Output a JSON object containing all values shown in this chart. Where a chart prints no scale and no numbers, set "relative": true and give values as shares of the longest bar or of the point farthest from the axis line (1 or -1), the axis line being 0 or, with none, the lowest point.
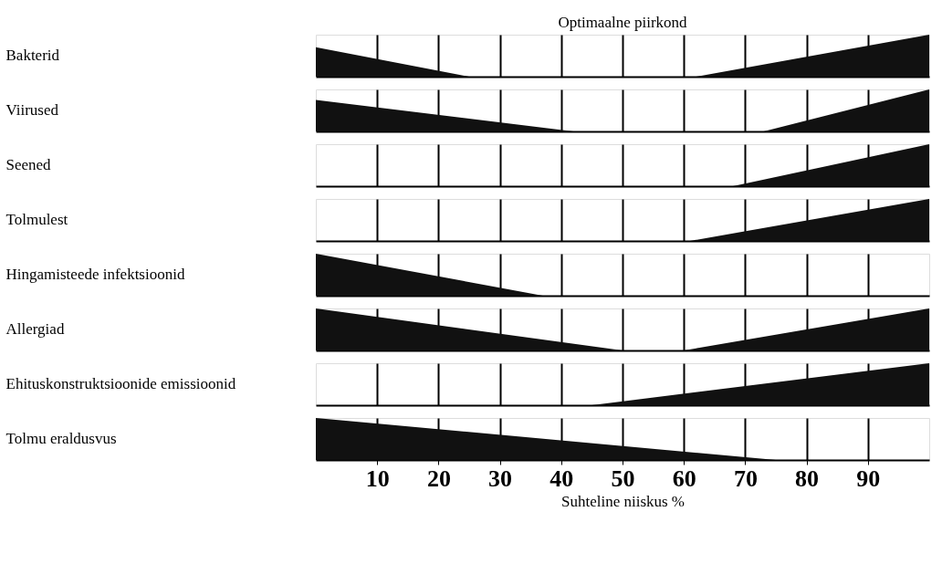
{
  "chart_data": [
    {
      "type": "area",
      "title": "Optimaalne piirkond",
      "ylabel": "Bakterid",
      "relative": true,
      "xlim": [
        0,
        100
      ],
      "xticks": [
        10,
        20,
        30,
        40,
        50,
        60,
        70,
        80,
        90
      ],
      "grid": "x",
      "tick_labels": false,
      "series": [
        {
          "color": "#111111",
          "x": [
            0,
            25,
            62,
            100
          ],
          "values": [
            0.7,
            0,
            0,
            1
          ]
        }
      ]
    },
    {
      "type": "area",
      "ylabel": "Viirused",
      "relative": true,
      "xlim": [
        0,
        100
      ],
      "xticks": [
        10,
        20,
        30,
        40,
        50,
        60,
        70,
        80,
        90
      ],
      "grid": "x",
      "tick_labels": false,
      "series": [
        {
          "color": "#111111",
          "x": [
            0,
            42,
            73,
            100
          ],
          "values": [
            0.75,
            0,
            0,
            1
          ]
        }
      ]
    },
    {
      "type": "area",
      "ylabel": "Seened",
      "relative": true,
      "xlim": [
        0,
        100
      ],
      "xticks": [
        10,
        20,
        30,
        40,
        50,
        60,
        70,
        80,
        90
      ],
      "grid": "x",
      "tick_labels": false,
      "series": [
        {
          "color": "#111111",
          "x": [
            68,
            100
          ],
          "values": [
            0,
            1
          ]
        }
      ]
    },
    {
      "type": "area",
      "ylabel": "Tolmulest",
      "relative": true,
      "xlim": [
        0,
        100
      ],
      "xticks": [
        10,
        20,
        30,
        40,
        50,
        60,
        70,
        80,
        90
      ],
      "grid": "x",
      "tick_labels": false,
      "series": [
        {
          "color": "#111111",
          "x": [
            61,
            100
          ],
          "values": [
            0,
            1
          ]
        }
      ]
    },
    {
      "type": "area",
      "ylabel": "Hingamisteede infektsioonid",
      "relative": true,
      "xlim": [
        0,
        100
      ],
      "xticks": [
        10,
        20,
        30,
        40,
        50,
        60,
        70,
        80,
        90
      ],
      "grid": "x",
      "tick_labels": false,
      "series": [
        {
          "color": "#111111",
          "x": [
            0,
            37
          ],
          "values": [
            1,
            0
          ]
        }
      ]
    },
    {
      "type": "area",
      "ylabel": "Allergiad",
      "relative": true,
      "xlim": [
        0,
        100
      ],
      "xticks": [
        10,
        20,
        30,
        40,
        50,
        60,
        70,
        80,
        90
      ],
      "grid": "x",
      "tick_labels": false,
      "series": [
        {
          "color": "#111111",
          "x": [
            0,
            50,
            60,
            100
          ],
          "values": [
            1,
            0,
            0,
            1
          ]
        }
      ]
    },
    {
      "type": "area",
      "ylabel": "Ehituskonstruktsioonide emissioonid",
      "relative": true,
      "xlim": [
        0,
        100
      ],
      "xticks": [
        10,
        20,
        30,
        40,
        50,
        60,
        70,
        80,
        90
      ],
      "grid": "x",
      "tick_labels": false,
      "series": [
        {
          "color": "#111111",
          "x": [
            45,
            100
          ],
          "values": [
            0,
            1
          ]
        }
      ]
    },
    {
      "type": "area",
      "ylabel": "Tolmu eraldusvus",
      "xlabel": "Suhteline niiskus %",
      "relative": true,
      "xlim": [
        0,
        100
      ],
      "xticks": [
        10,
        20,
        30,
        40,
        50,
        60,
        70,
        80,
        90
      ],
      "grid": "x",
      "tick_labels": "x",
      "series": [
        {
          "color": "#111111",
          "x": [
            0,
            75
          ],
          "values": [
            1,
            0
          ]
        }
      ]
    }
  ]
}
